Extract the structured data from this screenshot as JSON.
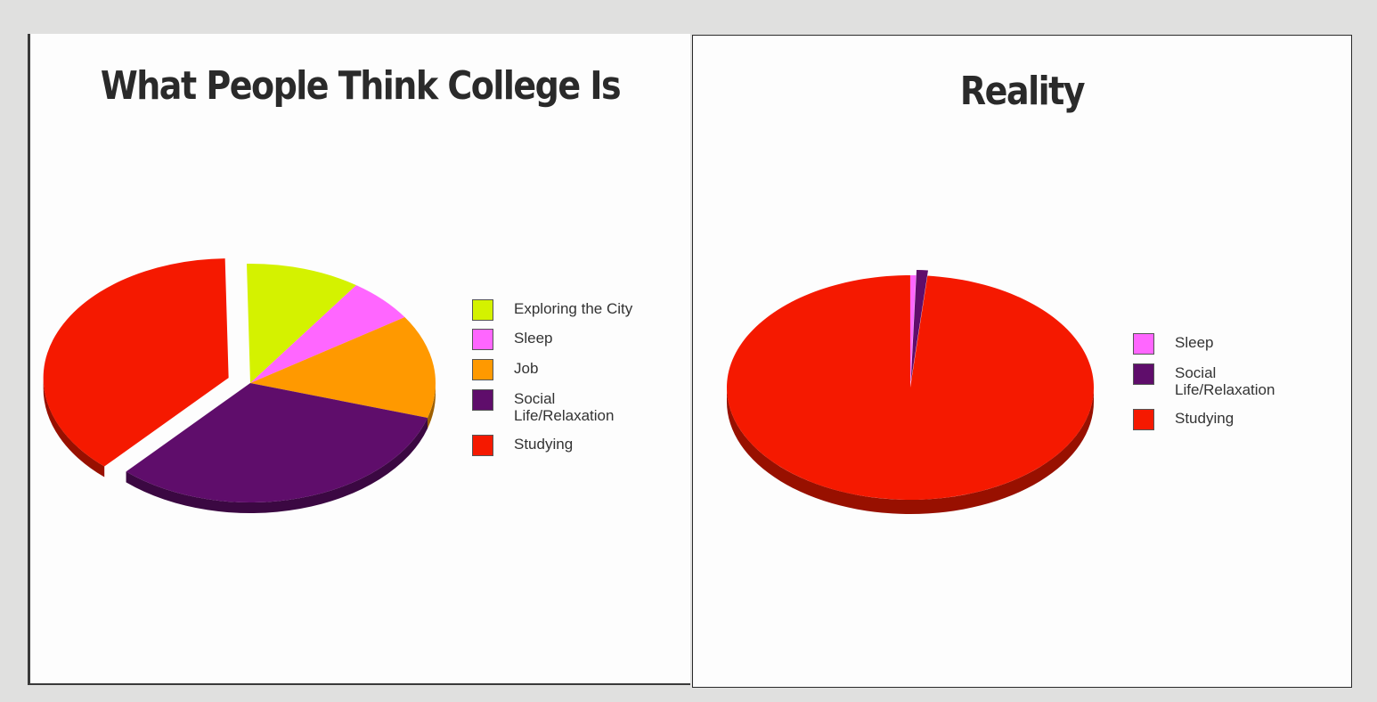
{
  "chart_data": [
    {
      "type": "pie",
      "title": "What People Think College Is",
      "categories": [
        "Exploring the City",
        "Sleep",
        "Job",
        "Social Life/Relaxation",
        "Studying"
      ],
      "values": [
        10,
        6,
        14,
        32,
        38
      ],
      "colors": [
        "#d4f200",
        "#ff66ff",
        "#ff9900",
        "#5f0d6b",
        "#f51900"
      ],
      "exploded": [
        "Studying"
      ],
      "legend_position": "right",
      "legend": [
        {
          "label": "Exploring the City",
          "color": "#d4f200"
        },
        {
          "label": "Sleep",
          "color": "#ff66ff"
        },
        {
          "label": "Job",
          "color": "#ff9900"
        },
        {
          "label": "Social\nLife/Relaxation",
          "color": "#5f0d6b"
        },
        {
          "label": "Studying",
          "color": "#f51900"
        }
      ]
    },
    {
      "type": "pie",
      "title": "Reality",
      "categories": [
        "Sleep",
        "Social Life/Relaxation",
        "Studying"
      ],
      "values": [
        0.5,
        1,
        98.5
      ],
      "colors": [
        "#ff66ff",
        "#5f0d6b",
        "#f51900"
      ],
      "exploded": [
        "Social Life/Relaxation"
      ],
      "legend_position": "right",
      "legend": [
        {
          "label": "Sleep",
          "color": "#ff66ff"
        },
        {
          "label": "Social\nLife/Relaxation",
          "color": "#5f0d6b"
        },
        {
          "label": "Studying",
          "color": "#f51900"
        }
      ]
    }
  ]
}
